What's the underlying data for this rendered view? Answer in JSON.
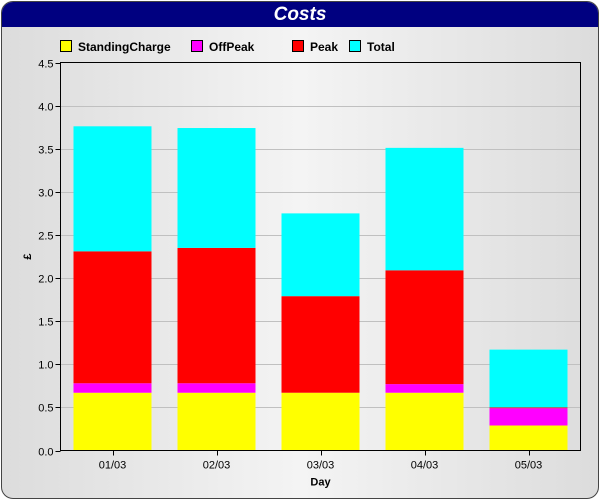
{
  "chart_data": {
    "type": "bar",
    "stacked": true,
    "title": "Costs",
    "xlabel": "Day",
    "ylabel": "£",
    "ylim": [
      0,
      4.5
    ],
    "yticks": [
      "0.0",
      "0.5",
      "1.0",
      "1.5",
      "2.0",
      "2.5",
      "3.0",
      "3.5",
      "4.0",
      "4.5"
    ],
    "ytick_values": [
      0,
      0.5,
      1.0,
      1.5,
      2.0,
      2.5,
      3.0,
      3.5,
      4.0,
      4.5
    ],
    "grid": true,
    "legend_position": "top",
    "categories": [
      "01/03",
      "02/03",
      "03/03",
      "04/03",
      "05/03"
    ],
    "series": [
      {
        "name": "StandingCharge",
        "color": "#ffff00",
        "values": [
          0.67,
          0.67,
          0.67,
          0.67,
          0.29
        ]
      },
      {
        "name": "OffPeak",
        "color": "#ff00ff",
        "values": [
          0.11,
          0.11,
          0.0,
          0.1,
          0.2
        ]
      },
      {
        "name": "Peak",
        "color": "#ff0000",
        "values": [
          1.53,
          1.57,
          1.12,
          1.32,
          0.01
        ]
      },
      {
        "name": "Total",
        "color": "#00ffff",
        "values": [
          1.45,
          1.39,
          0.96,
          1.42,
          0.67
        ]
      }
    ]
  },
  "colors": {
    "title_bar": "#000080",
    "title_text": "#ffffff",
    "grid": "#c0c0c0"
  }
}
